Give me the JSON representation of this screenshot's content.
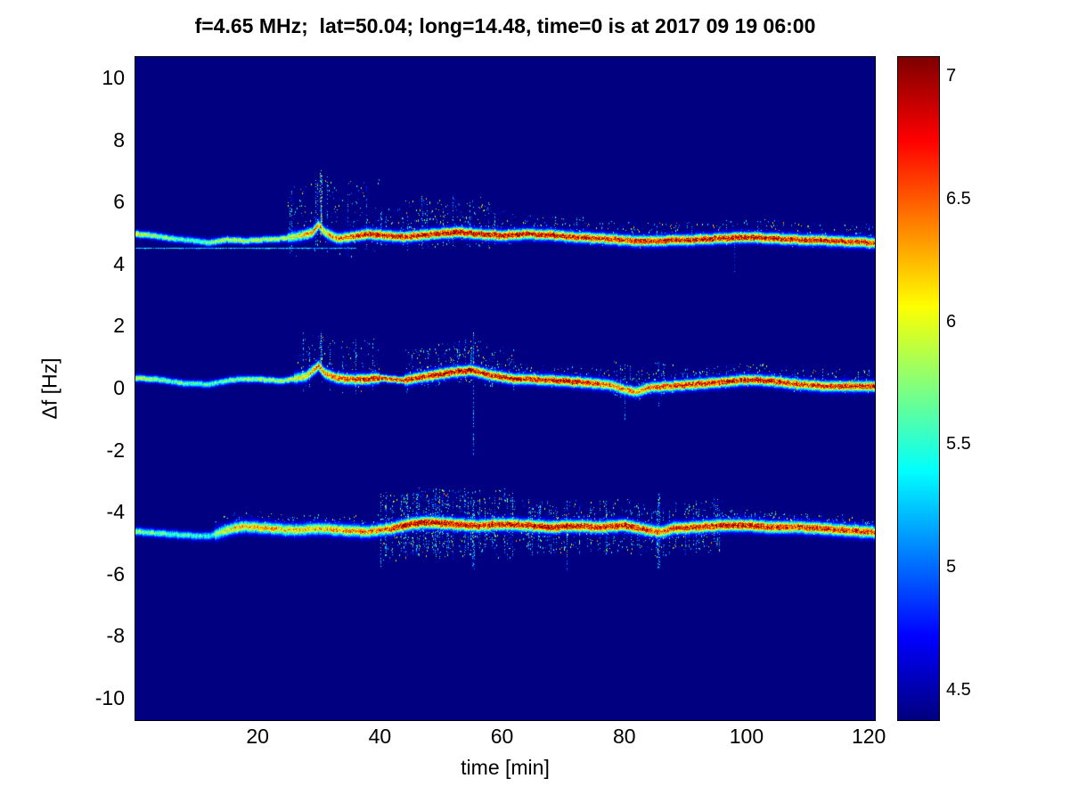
{
  "chart_data": {
    "type": "heatmap",
    "title": "f=4.65 MHz;  lat=50.04; long=14.48, time=0 is at 2017 09 19 06:00",
    "xlabel": "time [min]",
    "ylabel": "Δf [Hz]",
    "xlim": [
      0,
      121
    ],
    "ylim": [
      -10.7,
      10.7
    ],
    "x_ticks": [
      20,
      40,
      60,
      80,
      100,
      120
    ],
    "y_ticks": [
      10,
      8,
      6,
      4,
      2,
      0,
      -2,
      -4,
      -6,
      -8,
      -10
    ],
    "colormap": "jet",
    "value_range": [
      4.38,
      7.08
    ],
    "colorbar_ticks": [
      7,
      6.5,
      6,
      5.5,
      5,
      4.5
    ],
    "background_value": 4.38,
    "traces": [
      {
        "name": "upper-doppler-trace",
        "sigma": 0.07,
        "center": [
          [
            0,
            5.0
          ],
          [
            3,
            4.95
          ],
          [
            6,
            4.85
          ],
          [
            9,
            4.8
          ],
          [
            12,
            4.72
          ],
          [
            15,
            4.82
          ],
          [
            18,
            4.78
          ],
          [
            21,
            4.82
          ],
          [
            24,
            4.85
          ],
          [
            27,
            4.95
          ],
          [
            29,
            5.05
          ],
          [
            30,
            5.3
          ],
          [
            31,
            5.05
          ],
          [
            33,
            4.85
          ],
          [
            35,
            4.9
          ],
          [
            38,
            5.0
          ],
          [
            41,
            4.95
          ],
          [
            44,
            4.9
          ],
          [
            47,
            4.97
          ],
          [
            50,
            5.02
          ],
          [
            53,
            5.06
          ],
          [
            56,
            5.0
          ],
          [
            60,
            4.95
          ],
          [
            64,
            5.0
          ],
          [
            68,
            4.97
          ],
          [
            72,
            4.9
          ],
          [
            76,
            4.86
          ],
          [
            80,
            4.8
          ],
          [
            84,
            4.76
          ],
          [
            88,
            4.8
          ],
          [
            92,
            4.82
          ],
          [
            96,
            4.86
          ],
          [
            100,
            4.9
          ],
          [
            104,
            4.86
          ],
          [
            108,
            4.82
          ],
          [
            112,
            4.8
          ],
          [
            116,
            4.76
          ],
          [
            121,
            4.72
          ]
        ],
        "core": [
          [
            0,
            6.2
          ],
          [
            5,
            5.8
          ],
          [
            10,
            5.6
          ],
          [
            14,
            6.0
          ],
          [
            20,
            5.9
          ],
          [
            26,
            6.0
          ],
          [
            29,
            6.5
          ],
          [
            31,
            6.2
          ],
          [
            34,
            6.6
          ],
          [
            38,
            7.0
          ],
          [
            45,
            6.9
          ],
          [
            50,
            7.0
          ],
          [
            60,
            7.0
          ],
          [
            70,
            6.9
          ],
          [
            80,
            6.8
          ],
          [
            90,
            6.9
          ],
          [
            100,
            7.0
          ],
          [
            110,
            6.9
          ],
          [
            121,
            6.8
          ]
        ],
        "clouds": [
          {
            "t0": 25,
            "t1": 40,
            "h": 1.8,
            "d": 2.2,
            "s": 0.07
          },
          {
            "t0": 40,
            "t1": 44,
            "h": 0.9,
            "d": 2.2,
            "s": 0.06
          },
          {
            "t0": 44,
            "t1": 58,
            "h": 1.2,
            "d": 3.2,
            "s": 0.08
          },
          {
            "t0": 58,
            "t1": 62,
            "h": 0.8,
            "d": 2.0,
            "s": 0.05
          },
          {
            "t0": 62,
            "t1": 121,
            "h": 0.6,
            "d": 1.6,
            "s": 0.04
          }
        ]
      },
      {
        "name": "middle-doppler-trace",
        "sigma": 0.07,
        "center": [
          [
            0,
            0.35
          ],
          [
            4,
            0.3
          ],
          [
            8,
            0.18
          ],
          [
            12,
            0.15
          ],
          [
            16,
            0.3
          ],
          [
            20,
            0.32
          ],
          [
            24,
            0.25
          ],
          [
            28,
            0.42
          ],
          [
            30,
            0.75
          ],
          [
            31,
            0.5
          ],
          [
            33,
            0.35
          ],
          [
            36,
            0.3
          ],
          [
            40,
            0.35
          ],
          [
            44,
            0.28
          ],
          [
            48,
            0.42
          ],
          [
            52,
            0.55
          ],
          [
            55,
            0.6
          ],
          [
            58,
            0.45
          ],
          [
            62,
            0.32
          ],
          [
            66,
            0.3
          ],
          [
            70,
            0.26
          ],
          [
            74,
            0.2
          ],
          [
            78,
            0.12
          ],
          [
            80,
            -0.02
          ],
          [
            82,
            -0.1
          ],
          [
            84,
            0.04
          ],
          [
            88,
            0.1
          ],
          [
            92,
            0.16
          ],
          [
            96,
            0.22
          ],
          [
            100,
            0.3
          ],
          [
            104,
            0.26
          ],
          [
            108,
            0.16
          ],
          [
            112,
            0.1
          ],
          [
            116,
            0.08
          ],
          [
            121,
            0.1
          ]
        ],
        "core": [
          [
            0,
            6.0
          ],
          [
            6,
            5.7
          ],
          [
            12,
            5.6
          ],
          [
            18,
            5.8
          ],
          [
            24,
            5.9
          ],
          [
            29,
            6.4
          ],
          [
            33,
            6.6
          ],
          [
            38,
            6.9
          ],
          [
            45,
            6.8
          ],
          [
            50,
            7.0
          ],
          [
            55,
            7.0
          ],
          [
            60,
            6.9
          ],
          [
            66,
            6.8
          ],
          [
            72,
            6.9
          ],
          [
            78,
            6.5
          ],
          [
            82,
            6.4
          ],
          [
            88,
            6.8
          ],
          [
            95,
            6.9
          ],
          [
            102,
            7.0
          ],
          [
            110,
            6.8
          ],
          [
            121,
            6.9
          ]
        ],
        "clouds": [
          {
            "t0": 26,
            "t1": 40,
            "h": 1.3,
            "d": 1.8,
            "s": 0.05
          },
          {
            "t0": 44,
            "t1": 62,
            "h": 1.0,
            "d": 3.5,
            "s": 0.1
          },
          {
            "t0": 62,
            "t1": 78,
            "h": 0.5,
            "d": 1.5,
            "s": 0.04
          },
          {
            "t0": 78,
            "t1": 88,
            "h": 0.8,
            "d": 2.2,
            "s": 0.08
          },
          {
            "t0": 88,
            "t1": 121,
            "h": 0.55,
            "d": 1.8,
            "s": 0.05
          }
        ]
      },
      {
        "name": "lower-doppler-trace",
        "sigma": 0.08,
        "center": [
          [
            0,
            -4.6
          ],
          [
            4,
            -4.66
          ],
          [
            8,
            -4.72
          ],
          [
            12,
            -4.76
          ],
          [
            14,
            -4.62
          ],
          [
            16,
            -4.5
          ],
          [
            18,
            -4.44
          ],
          [
            22,
            -4.5
          ],
          [
            26,
            -4.56
          ],
          [
            30,
            -4.5
          ],
          [
            34,
            -4.56
          ],
          [
            38,
            -4.6
          ],
          [
            42,
            -4.5
          ],
          [
            45,
            -4.36
          ],
          [
            48,
            -4.3
          ],
          [
            52,
            -4.36
          ],
          [
            56,
            -4.42
          ],
          [
            60,
            -4.36
          ],
          [
            64,
            -4.4
          ],
          [
            68,
            -4.46
          ],
          [
            72,
            -4.42
          ],
          [
            76,
            -4.46
          ],
          [
            80,
            -4.4
          ],
          [
            84,
            -4.56
          ],
          [
            86,
            -4.62
          ],
          [
            88,
            -4.5
          ],
          [
            92,
            -4.46
          ],
          [
            96,
            -4.4
          ],
          [
            100,
            -4.4
          ],
          [
            104,
            -4.46
          ],
          [
            108,
            -4.46
          ],
          [
            112,
            -4.5
          ],
          [
            116,
            -4.56
          ],
          [
            121,
            -4.62
          ]
        ],
        "core": [
          [
            0,
            5.8
          ],
          [
            6,
            5.6
          ],
          [
            12,
            5.5
          ],
          [
            16,
            6.2
          ],
          [
            22,
            6.3
          ],
          [
            28,
            6.2
          ],
          [
            34,
            6.4
          ],
          [
            40,
            6.5
          ],
          [
            44,
            7.0
          ],
          [
            50,
            7.0
          ],
          [
            56,
            6.9
          ],
          [
            62,
            6.9
          ],
          [
            68,
            7.0
          ],
          [
            74,
            6.8
          ],
          [
            80,
            6.9
          ],
          [
            85,
            6.6
          ],
          [
            90,
            6.8
          ],
          [
            96,
            6.9
          ],
          [
            102,
            6.9
          ],
          [
            108,
            6.8
          ],
          [
            114,
            6.8
          ],
          [
            121,
            6.7
          ]
        ],
        "clouds": [
          {
            "t0": 13,
            "t1": 40,
            "h": 0.5,
            "d": 1.4,
            "s": 0.05
          },
          {
            "t0": 40,
            "t1": 62,
            "h": 1.1,
            "d": 4.5,
            "s": 0.22,
            "sym": true
          },
          {
            "t0": 62,
            "t1": 96,
            "h": 0.85,
            "d": 3.0,
            "s": 0.16,
            "sym": true
          },
          {
            "t0": 96,
            "t1": 121,
            "h": 0.5,
            "d": 1.8,
            "s": 0.07
          }
        ]
      }
    ],
    "flatline": {
      "f": 4.55,
      "t0": 0,
      "t1": 36,
      "value": 5.4
    },
    "events": [
      {
        "t": 30.3,
        "f0": 5.0,
        "f1": 7.05,
        "w": 1,
        "vmax": 6.5,
        "density": 0.6
      },
      {
        "t": 30.3,
        "f0": 4.95,
        "f1": 6.1,
        "w": 0,
        "vmax": 7.0,
        "density": 0.85
      },
      {
        "t": 30.3,
        "f0": 0.45,
        "f1": 1.8,
        "w": 1,
        "vmax": 6.3,
        "density": 0.6
      },
      {
        "t": 55.2,
        "f0": -2.2,
        "f1": 1.8,
        "w": 0,
        "vmax": 5.7,
        "density": 0.75
      },
      {
        "t": 55.2,
        "f0": -5.8,
        "f1": -3.6,
        "w": 1,
        "vmax": 6.0,
        "density": 0.55
      },
      {
        "t": 70.6,
        "f0": -5.9,
        "f1": -3.6,
        "w": 0,
        "vmax": 5.8,
        "density": 0.6
      },
      {
        "t": 80.0,
        "f0": -1.0,
        "f1": 0.9,
        "w": 0,
        "vmax": 5.7,
        "density": 0.5
      },
      {
        "t": 85.6,
        "f0": -5.8,
        "f1": -3.4,
        "w": 1,
        "vmax": 6.1,
        "density": 0.6
      },
      {
        "t": 85.6,
        "f0": -0.7,
        "f1": 0.9,
        "w": 0,
        "vmax": 5.6,
        "density": 0.45
      },
      {
        "t": 98.0,
        "f0": 3.7,
        "f1": 4.8,
        "w": 0,
        "vmax": 5.3,
        "density": 0.4
      }
    ]
  }
}
